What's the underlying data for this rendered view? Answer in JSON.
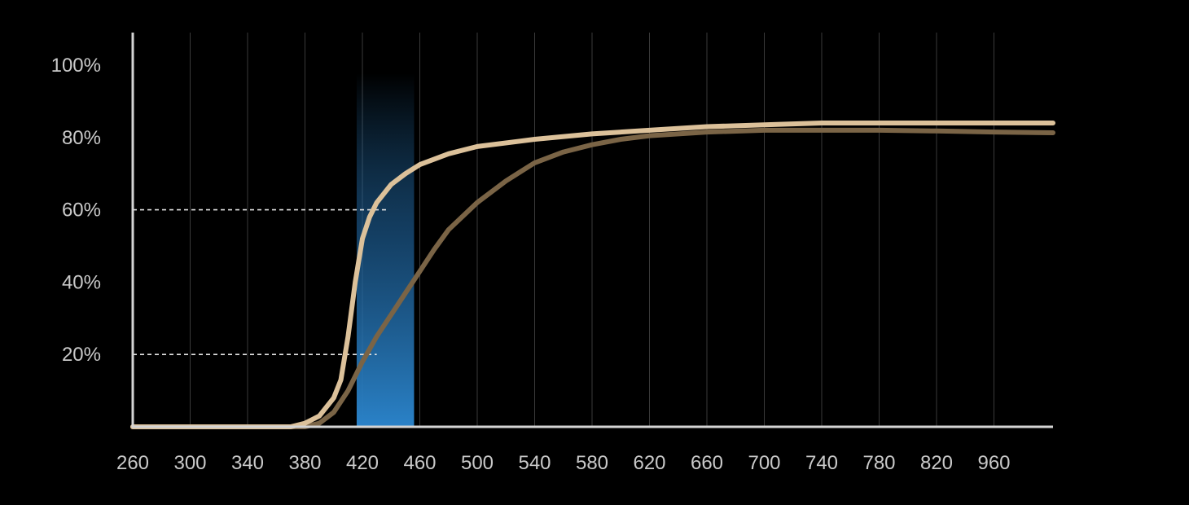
{
  "chart_data": {
    "type": "line",
    "x_tick_labels": [
      "260",
      "300",
      "340",
      "380",
      "420",
      "460",
      "500",
      "540",
      "580",
      "620",
      "660",
      "700",
      "740",
      "780",
      "820",
      "960"
    ],
    "y_tick_labels": [
      "20%",
      "40%",
      "60%",
      "80%",
      "100%"
    ],
    "y_ticks": [
      20,
      40,
      60,
      80,
      100
    ],
    "ylim": [
      0,
      100
    ],
    "grid": "vertical",
    "highlight_band": {
      "x_start": 416,
      "x_end": 456,
      "color": "#2a82c8"
    },
    "reference_lines": [
      {
        "y": 20,
        "x_end": 430,
        "style": "dashed"
      },
      {
        "y": 60,
        "x_end": 438,
        "style": "dashed"
      }
    ],
    "x_max_plot": 900,
    "series": [
      {
        "color": "#dcc19a",
        "points": [
          [
            260,
            0
          ],
          [
            340,
            0
          ],
          [
            370,
            0
          ],
          [
            380,
            1
          ],
          [
            390,
            3
          ],
          [
            400,
            8
          ],
          [
            405,
            13
          ],
          [
            410,
            25
          ],
          [
            415,
            40
          ],
          [
            420,
            52
          ],
          [
            425,
            58
          ],
          [
            430,
            62
          ],
          [
            440,
            67
          ],
          [
            450,
            70
          ],
          [
            460,
            72.5
          ],
          [
            480,
            75.5
          ],
          [
            500,
            77.5
          ],
          [
            540,
            79.5
          ],
          [
            580,
            81
          ],
          [
            620,
            82
          ],
          [
            660,
            83
          ],
          [
            700,
            83.5
          ],
          [
            740,
            84
          ],
          [
            780,
            84
          ],
          [
            820,
            84
          ],
          [
            860,
            84
          ],
          [
            900,
            84
          ]
        ]
      },
      {
        "color": "#7a6446",
        "points": [
          [
            260,
            0
          ],
          [
            360,
            0
          ],
          [
            380,
            0
          ],
          [
            390,
            1
          ],
          [
            400,
            4
          ],
          [
            410,
            10
          ],
          [
            420,
            18
          ],
          [
            430,
            25
          ],
          [
            440,
            31
          ],
          [
            450,
            37
          ],
          [
            460,
            43
          ],
          [
            470,
            49
          ],
          [
            480,
            54.5
          ],
          [
            500,
            62
          ],
          [
            520,
            68
          ],
          [
            540,
            73
          ],
          [
            560,
            76
          ],
          [
            580,
            78
          ],
          [
            600,
            79.5
          ],
          [
            620,
            80.5
          ],
          [
            660,
            81.5
          ],
          [
            700,
            82
          ],
          [
            740,
            82
          ],
          [
            780,
            82
          ],
          [
            820,
            81.8
          ],
          [
            860,
            81.5
          ],
          [
            900,
            81.3
          ]
        ]
      }
    ]
  }
}
